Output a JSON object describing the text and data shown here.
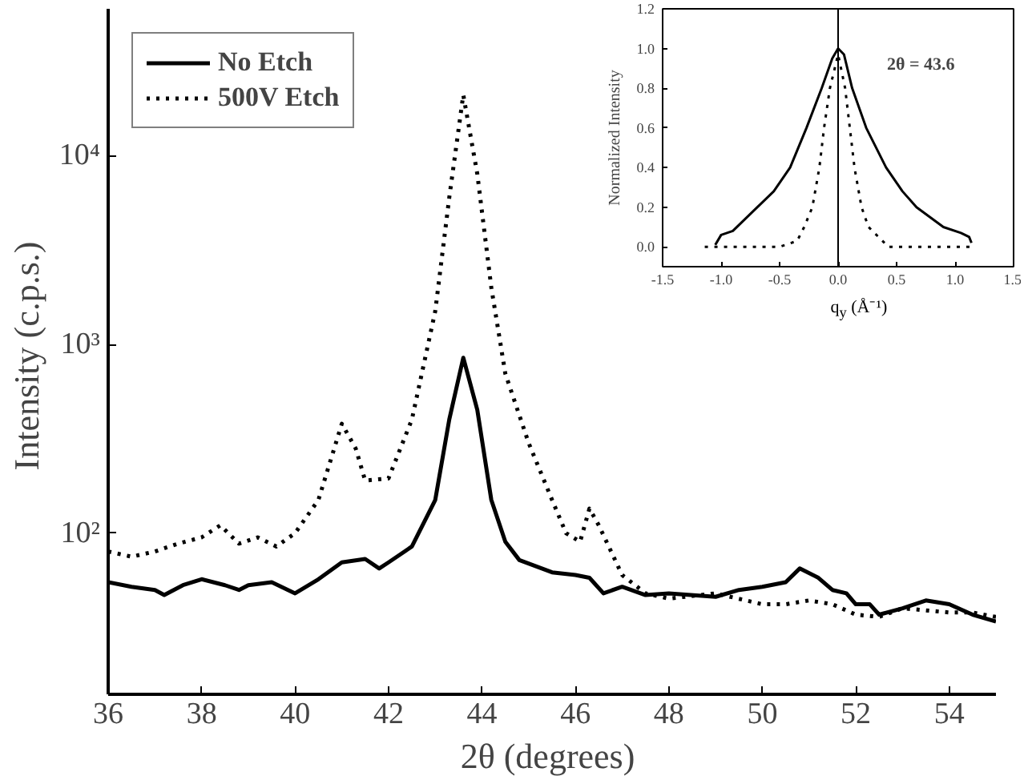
{
  "chart_data": [
    {
      "type": "line",
      "xlabel": "2θ  (degrees)",
      "ylabel": "Intensity  (c.p.s.)",
      "log": true,
      "legend": "top left",
      "marker": "none",
      "xlim": [
        36,
        55
      ],
      "xticks": [
        36,
        38,
        40,
        42,
        44,
        46,
        48,
        50,
        52,
        54
      ],
      "ylim": [
        14,
        60000
      ],
      "yticks": [
        {
          "value": 100,
          "label": "10²"
        },
        {
          "value": 1000,
          "label": "10³"
        },
        {
          "value": 10000,
          "label": "10⁴"
        }
      ],
      "series": [
        {
          "name": "No Etch",
          "color": "#000000",
          "line_style": "solid",
          "x": [
            36,
            36.5,
            37,
            37.2,
            37.6,
            38,
            38.5,
            38.8,
            39,
            39.5,
            40,
            40.5,
            41,
            41.5,
            41.8,
            42,
            42.5,
            43,
            43.3,
            43.6,
            43.9,
            44.2,
            44.5,
            44.8,
            45.5,
            46,
            46.3,
            46.6,
            47,
            47.5,
            48,
            49,
            49.5,
            50,
            50.5,
            50.8,
            51.2,
            51.5,
            51.8,
            52,
            52.3,
            52.5,
            53,
            53.5,
            54,
            54.5,
            55
          ],
          "values": [
            55,
            52,
            50,
            47,
            53,
            57,
            53,
            50,
            53,
            55,
            48,
            57,
            70,
            73,
            65,
            70,
            85,
            150,
            400,
            850,
            450,
            150,
            90,
            72,
            62,
            60,
            58,
            48,
            52,
            47,
            48,
            46,
            50,
            52,
            55,
            65,
            58,
            50,
            48,
            42,
            42,
            37,
            40,
            44,
            42,
            37,
            34
          ]
        },
        {
          "name": "500V Etch",
          "color": "#000000",
          "line_style": "dotted",
          "x": [
            36,
            36.5,
            37,
            37.5,
            38,
            38.4,
            38.8,
            39.2,
            39.6,
            40,
            40.5,
            41,
            41.3,
            41.5,
            42,
            42.5,
            43,
            43.3,
            43.6,
            43.9,
            44.2,
            44.5,
            45,
            45.5,
            45.8,
            46.1,
            46.3,
            46.5,
            47,
            47.5,
            48,
            49,
            50,
            50.5,
            51,
            51.5,
            52,
            52.5,
            53,
            54,
            54.5,
            55
          ],
          "values": [
            80,
            75,
            80,
            88,
            95,
            110,
            88,
            95,
            85,
            100,
            150,
            380,
            280,
            190,
            195,
            400,
            1500,
            6000,
            21000,
            8000,
            2000,
            700,
            300,
            150,
            100,
            90,
            135,
            110,
            60,
            48,
            45,
            48,
            42,
            42,
            44,
            42,
            37,
            36,
            40,
            38,
            38,
            36
          ]
        }
      ]
    },
    {
      "type": "line",
      "xlabel": "q$_{y}$ (Å⁻¹)",
      "ylabel": "Normalized Intensity",
      "marker": "none",
      "xlim": [
        -1.5,
        1.5
      ],
      "xticks": [
        -1.5,
        {
          "value": -1,
          "label": "-1.0"
        },
        -0.5,
        {
          "value": 0,
          "label": "0.0"
        },
        0.5,
        {
          "value": 1,
          "label": "1.0"
        },
        1.5
      ],
      "ylim": [
        -0.1,
        1.2
      ],
      "yticks": [
        {
          "value": 0,
          "label": "0.0"
        },
        0.2,
        0.4,
        0.6,
        0.8,
        {
          "value": 1,
          "label": "1.0"
        },
        1.2
      ],
      "ref_lines": [
        {
          "axis": "x",
          "value": 0,
          "color": "#000000"
        }
      ],
      "annotations": [
        "2θ = 43.6"
      ],
      "series": [
        {
          "color": "#000000",
          "line_style": "solid",
          "x": [
            -1.05,
            -1.0,
            -0.9,
            -0.69,
            -0.55,
            -0.41,
            -0.27,
            -0.14,
            -0.05,
            0,
            0.05,
            0.12,
            0.24,
            0.41,
            0.55,
            0.67,
            0.9,
            1.05,
            1.12,
            1.14
          ],
          "values": [
            0.01,
            0.06,
            0.08,
            0.2,
            0.28,
            0.4,
            0.6,
            0.8,
            0.95,
            1.0,
            0.97,
            0.8,
            0.6,
            0.4,
            0.28,
            0.2,
            0.1,
            0.07,
            0.05,
            0.02
          ]
        },
        {
          "color": "#000000",
          "line_style": "dotted",
          "x": [
            -1.14,
            -0.5,
            -0.35,
            -0.29,
            -0.22,
            -0.16,
            -0.12,
            -0.07,
            0,
            0.06,
            0.1,
            0.14,
            0.2,
            0.26,
            0.43,
            1.14
          ],
          "values": [
            0,
            0,
            0.03,
            0.1,
            0.2,
            0.4,
            0.6,
            0.8,
            0.97,
            0.8,
            0.6,
            0.4,
            0.2,
            0.1,
            0,
            0
          ]
        }
      ]
    }
  ]
}
